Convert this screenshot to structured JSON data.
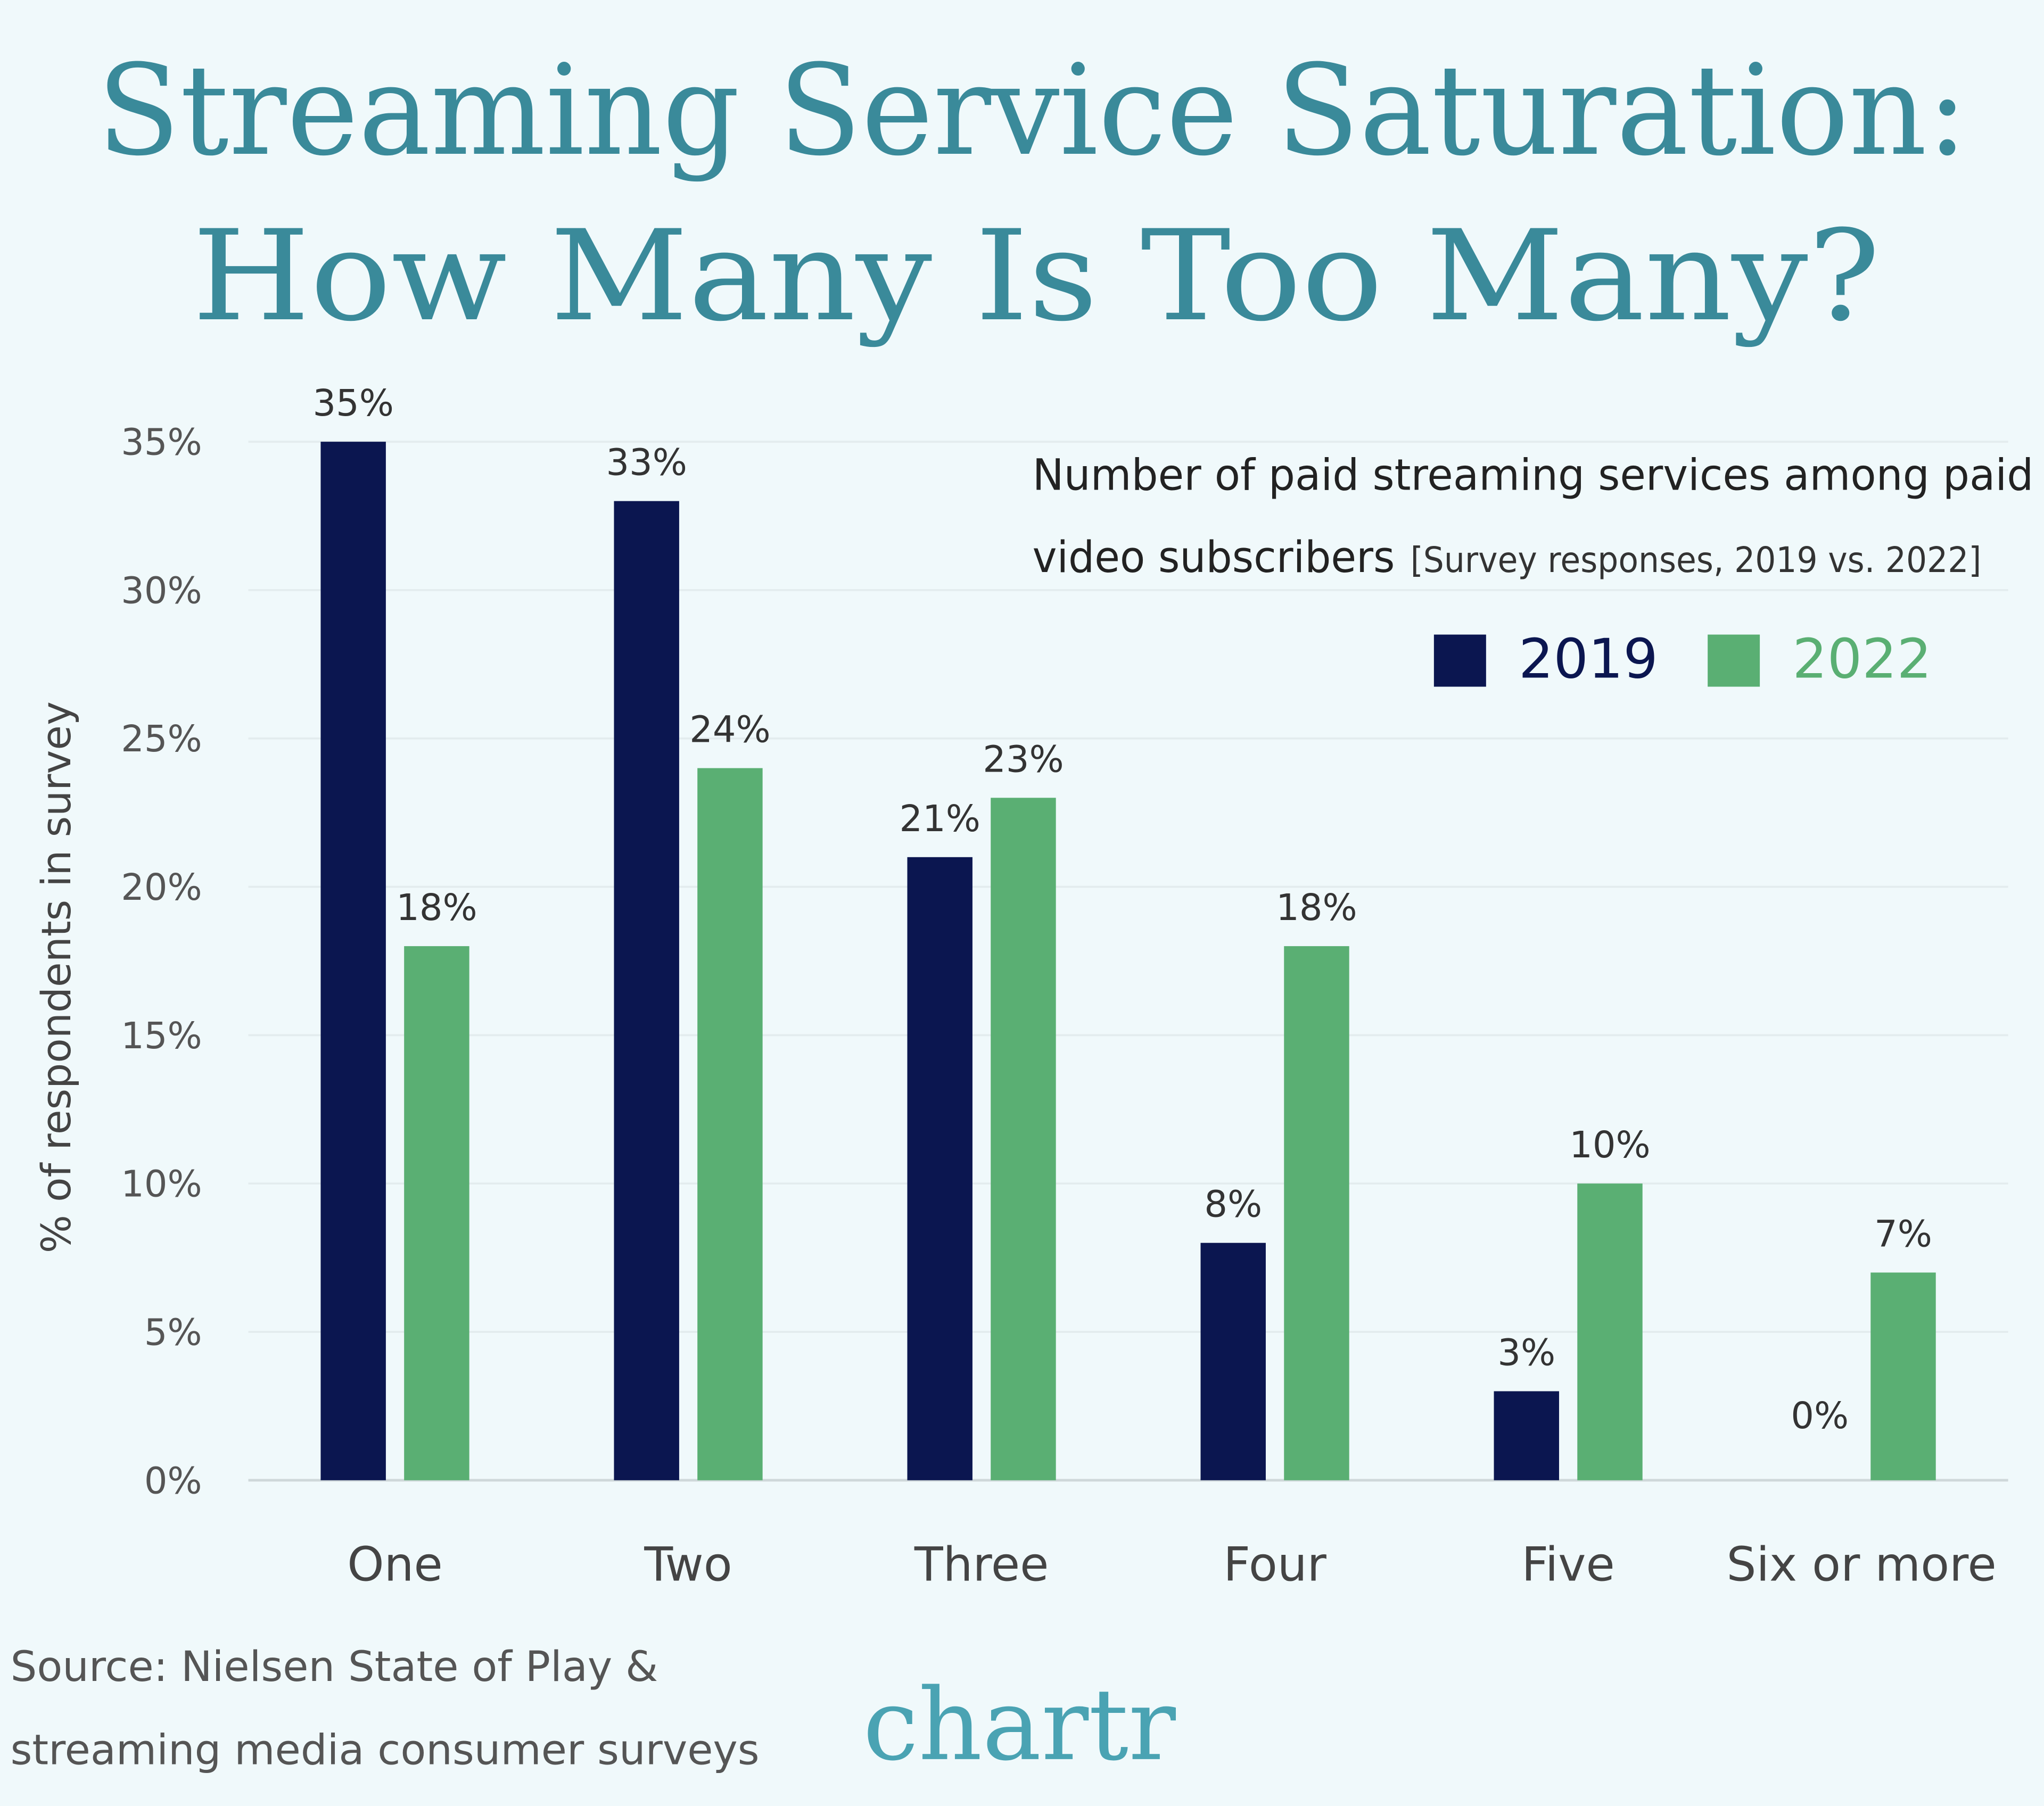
{
  "chart_data": {
    "type": "bar",
    "title": [
      "Streaming Service Saturation:",
      "How Many Is Too Many?"
    ],
    "subtitle": [
      "Number of paid streaming services among paid",
      "video subscribers"
    ],
    "subtitle_note": "[Survey responses, 2019 vs. 2022]",
    "y_label": "% of respondents in survey",
    "categories": [
      "One",
      "Two",
      "Three",
      "Four",
      "Five",
      "Six or more"
    ],
    "series": [
      {
        "name": "2019",
        "color": "#0b1650",
        "values": [
          35,
          33,
          21,
          8,
          3,
          0
        ],
        "value_labels": [
          "35%",
          "33%",
          "21%",
          "8%",
          "3%",
          "0%"
        ]
      },
      {
        "name": "2022",
        "color": "#5aaf73",
        "values": [
          18,
          24,
          23,
          18,
          10,
          7
        ],
        "value_labels": [
          "18%",
          "24%",
          "23%",
          "18%",
          "10%",
          "7%"
        ]
      }
    ],
    "ylim": [
      0,
      35
    ],
    "yticks": [
      {
        "value": 0,
        "label": "0%"
      },
      {
        "value": 5,
        "label": "5%"
      },
      {
        "value": 10,
        "label": "10%"
      },
      {
        "value": 15,
        "label": "15%"
      },
      {
        "value": 20,
        "label": "20%"
      },
      {
        "value": 25,
        "label": "25%"
      },
      {
        "value": 30,
        "label": "30%"
      },
      {
        "value": 35,
        "label": "35%"
      }
    ],
    "grid": true,
    "legend": "top-right",
    "source": [
      "Source: Nielsen State of Play &",
      "streaming media consumer surveys"
    ],
    "logo": "chartr"
  }
}
